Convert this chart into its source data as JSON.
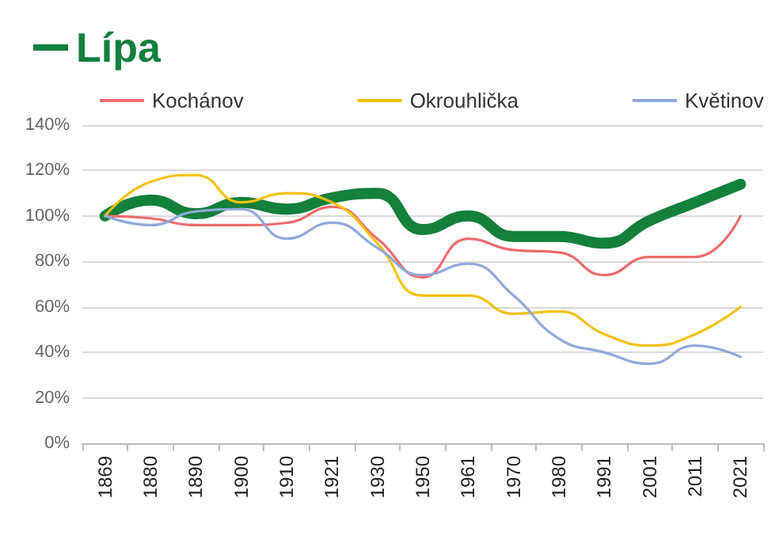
{
  "chart_data": {
    "type": "line",
    "categories": [
      "1869",
      "1880",
      "1890",
      "1900",
      "1910",
      "1921",
      "1930",
      "1950",
      "1961",
      "1970",
      "1980",
      "1991",
      "2001",
      "2011",
      "2021"
    ],
    "series": [
      {
        "name": "Lípa",
        "color": "#13803c",
        "values": [
          100,
          107,
          101,
          106,
          103,
          108,
          110,
          94,
          100,
          91,
          91,
          88,
          98,
          106,
          114
        ]
      },
      {
        "name": "Kochánov",
        "color": "#ef6b6b",
        "values": [
          100,
          99,
          96,
          96,
          97,
          104,
          90,
          73,
          90,
          85,
          84,
          74,
          82,
          82,
          100
        ]
      },
      {
        "name": "Okrouhlička",
        "color": "#f4c20d",
        "values": [
          100,
          115,
          118,
          106,
          110,
          106,
          88,
          65,
          65,
          57,
          58,
          48,
          43,
          48,
          60
        ]
      },
      {
        "name": "Květinov",
        "color": "#8faadc",
        "values": [
          100,
          96,
          102,
          103,
          90,
          97,
          86,
          74,
          79,
          65,
          46,
          40,
          35,
          43,
          38
        ]
      }
    ],
    "ylim": [
      0,
      140
    ],
    "yticks": [
      {
        "value": 0,
        "label": "0%"
      },
      {
        "value": 20,
        "label": "20%"
      },
      {
        "value": 40,
        "label": "40%"
      },
      {
        "value": 60,
        "label": "60%"
      },
      {
        "value": 80,
        "label": "80%"
      },
      {
        "value": 100,
        "label": "100%"
      },
      {
        "value": 120,
        "label": "120%"
      },
      {
        "value": 140,
        "label": "140%"
      }
    ],
    "grid": "y",
    "legend": "top",
    "marker": "none",
    "line_style": "solid"
  }
}
